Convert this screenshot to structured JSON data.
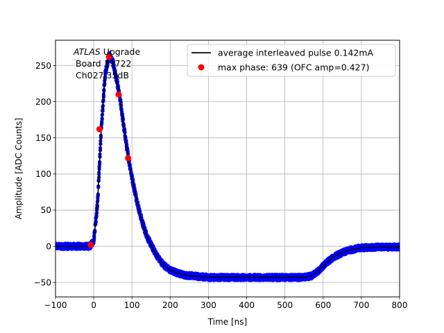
{
  "chart_data": {
    "type": "scatter",
    "title": "",
    "xlabel": "Time [ns]",
    "ylabel": "Amplitude [ADC Counts]",
    "xlim": [
      -100,
      800
    ],
    "ylim": [
      -70,
      285
    ],
    "grid": true,
    "x_ticks": [
      -100,
      0,
      100,
      200,
      300,
      400,
      500,
      600,
      700,
      800
    ],
    "x_tick_labels": [
      "−100",
      "0",
      "100",
      "200",
      "300",
      "400",
      "500",
      "600",
      "700",
      "800"
    ],
    "y_ticks": [
      -50,
      0,
      50,
      100,
      150,
      200,
      250
    ],
    "y_tick_labels": [
      "−50",
      "0",
      "50",
      "100",
      "150",
      "200",
      "250"
    ],
    "annotation": {
      "line1_italic": "ATLAS",
      "line1_rest": " Upgrade",
      "line2": "Board 17722",
      "line3": "Ch027 35dB"
    },
    "legend_position": "top-right",
    "legend": [
      {
        "label": "average interleaved pulse 0.142mA",
        "marker": "line",
        "color": "#000000"
      },
      {
        "label": "max phase: 639 (OFC amp=0.427)",
        "marker": "dot",
        "color": "#ff0000"
      }
    ],
    "series": [
      {
        "type": "scatter",
        "color": "#0000ff",
        "note": "interleaved samples (dense band around the average pulse)",
        "noise": 4,
        "x": [
          -100,
          -50,
          -10,
          0,
          10,
          20,
          30,
          40,
          50,
          60,
          70,
          80,
          90,
          100,
          110,
          120,
          130,
          140,
          150,
          160,
          170,
          180,
          190,
          200,
          220,
          240,
          260,
          280,
          300,
          350,
          400,
          450,
          500,
          550,
          570,
          590,
          610,
          630,
          650,
          670,
          700,
          750,
          800
        ],
        "y": [
          0,
          0,
          0,
          8,
          60,
          165,
          238,
          265,
          255,
          230,
          200,
          160,
          125,
          95,
          70,
          47,
          28,
          13,
          2,
          -8,
          -17,
          -24,
          -29,
          -33,
          -37,
          -40,
          -41,
          -42,
          -43,
          -43,
          -43,
          -43,
          -43,
          -43,
          -41,
          -33,
          -22,
          -14,
          -9,
          -5,
          -2,
          -1,
          -1
        ]
      },
      {
        "name": "average interleaved pulse 0.142mA",
        "type": "line",
        "color": "#000000",
        "x": [
          -100,
          -50,
          -10,
          0,
          10,
          20,
          30,
          40,
          50,
          60,
          70,
          80,
          90,
          100,
          110,
          120,
          130,
          140,
          150,
          160,
          170,
          180,
          190,
          200,
          220,
          240,
          260,
          280,
          300,
          350,
          400,
          450,
          500,
          550,
          570,
          590,
          610,
          630,
          650,
          670,
          700,
          750,
          800
        ],
        "y": [
          0,
          0,
          0,
          8,
          60,
          165,
          238,
          265,
          255,
          230,
          200,
          160,
          125,
          95,
          70,
          47,
          28,
          13,
          2,
          -8,
          -17,
          -24,
          -29,
          -33,
          -37,
          -40,
          -41,
          -42,
          -43,
          -43,
          -43,
          -43,
          -43,
          -43,
          -41,
          -33,
          -22,
          -14,
          -9,
          -5,
          -2,
          -1,
          -1
        ]
      },
      {
        "name": "max phase: 639 (OFC amp=0.427)",
        "type": "scatter",
        "color": "#ff0000",
        "x": [
          -8,
          15,
          40,
          65,
          90
        ],
        "y": [
          2,
          162,
          262,
          210,
          122
        ]
      }
    ]
  }
}
